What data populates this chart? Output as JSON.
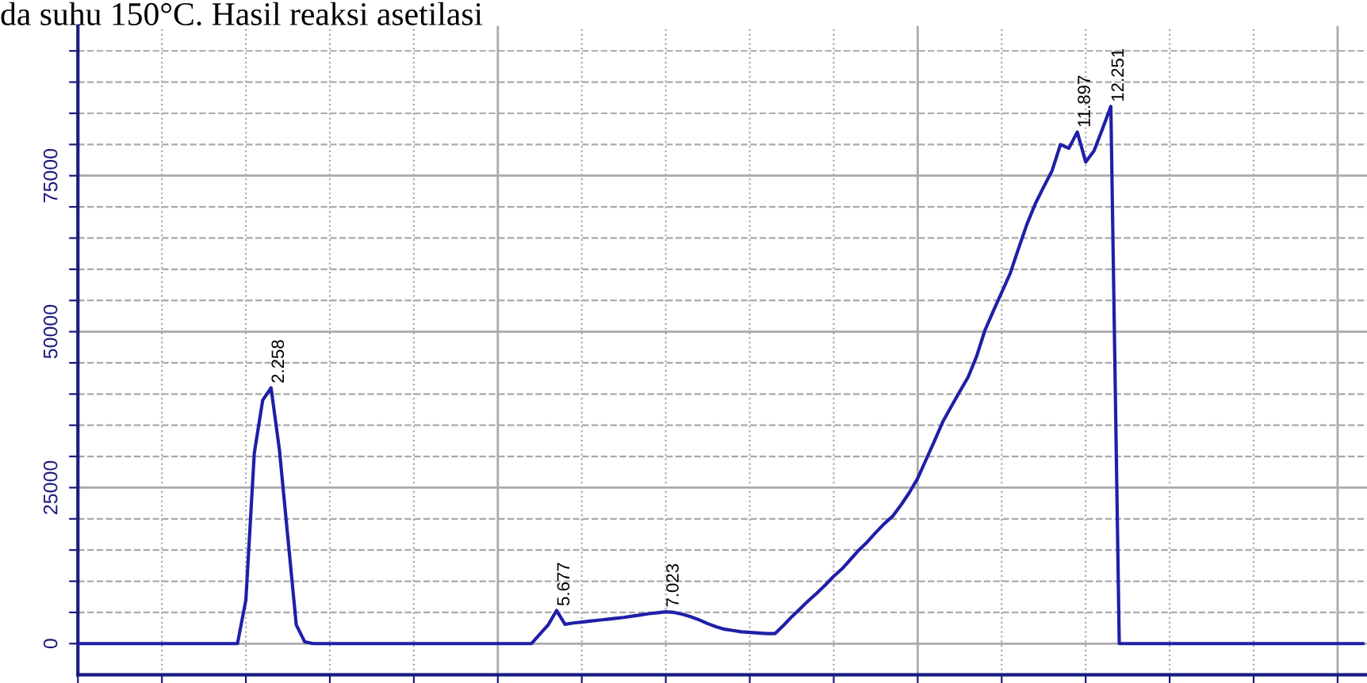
{
  "chart_data": {
    "type": "line",
    "title": "da suhu 150°C. Hasil reaksi asetilasi",
    "categories": [
      null,
      null,
      null,
      null,
      null,
      null,
      null,
      null,
      null,
      null,
      null,
      null,
      null,
      null,
      null,
      null,
      null,
      null,
      null,
      null,
      null,
      null,
      null,
      null,
      null,
      null,
      null,
      null,
      null,
      null,
      null,
      null,
      null,
      null,
      null,
      null,
      null,
      null,
      null,
      null,
      null,
      null,
      null,
      null,
      null,
      null,
      null,
      null,
      null,
      null,
      null,
      null,
      null,
      null,
      null,
      null,
      null,
      null,
      null,
      null,
      null,
      null,
      null,
      null,
      null,
      null,
      null,
      null,
      null,
      null,
      null,
      null,
      null,
      null,
      null,
      null,
      null,
      null,
      null,
      null,
      null,
      null,
      null,
      null,
      null,
      null,
      null,
      null,
      null,
      null,
      null,
      null,
      null,
      null,
      null,
      null,
      null,
      null,
      null,
      null,
      null,
      null,
      null,
      null,
      null,
      null,
      null,
      null,
      null,
      null,
      null,
      null,
      null,
      null,
      null,
      null,
      null,
      null,
      null,
      null,
      null,
      null,
      null,
      null,
      null,
      null,
      null,
      null,
      null,
      null,
      null,
      null,
      null,
      null,
      null,
      null,
      null,
      null,
      null,
      null,
      null,
      null,
      null,
      null,
      null,
      null,
      null,
      null,
      null,
      null,
      null,
      null,
      null,
      null
    ],
    "ylim": [
      -5000,
      99000
    ],
    "yticks": [
      0,
      {
        "value": 5000,
        "label": null
      },
      {
        "value": 10000,
        "label": null
      },
      {
        "value": 15000,
        "label": null
      },
      {
        "value": 20000,
        "label": null
      },
      25000,
      {
        "value": 30000,
        "label": null
      },
      {
        "value": 35000,
        "label": null
      },
      {
        "value": 40000,
        "label": null
      },
      {
        "value": 45000,
        "label": null
      },
      50000,
      {
        "value": 55000,
        "label": null
      },
      {
        "value": 60000,
        "label": null
      },
      {
        "value": 65000,
        "label": null
      },
      {
        "value": 70000,
        "label": null
      },
      75000,
      {
        "value": 80000,
        "label": null
      },
      {
        "value": 85000,
        "label": null
      },
      {
        "value": 90000,
        "label": null
      },
      {
        "value": 95000,
        "label": null
      }
    ],
    "grid": true,
    "marker": "none",
    "line_style": "solid",
    "series": [
      {
        "color": "#1f1fa8",
        "values": [
          0,
          0,
          0,
          0,
          0,
          0,
          0,
          0,
          0,
          0,
          0,
          0,
          0,
          0,
          0,
          0,
          0,
          0,
          0,
          0,
          7000,
          30500,
          39000,
          41000,
          31000,
          17000,
          3000,
          300,
          0,
          0,
          0,
          0,
          0,
          0,
          0,
          0,
          0,
          0,
          0,
          0,
          0,
          0,
          0,
          0,
          0,
          0,
          0,
          0,
          0,
          0,
          0,
          0,
          0,
          0,
          0,
          1500,
          3000,
          5300,
          3100,
          3300,
          3450,
          3600,
          3750,
          3900,
          4050,
          4200,
          4400,
          4600,
          4800,
          4950,
          5100,
          5000,
          4700,
          4300,
          3800,
          3200,
          2700,
          2300,
          2100,
          1900,
          1800,
          1700,
          1600,
          1600,
          2900,
          4300,
          5600,
          6900,
          8100,
          9400,
          10800,
          12000,
          13500,
          15000,
          16300,
          17800,
          19200,
          20400,
          22200,
          24200,
          26500,
          29500,
          32500,
          35600,
          38000,
          40400,
          42700,
          46000,
          50200,
          53300,
          56300,
          59300,
          63300,
          67200,
          70500,
          73200,
          75800,
          80000,
          79400,
          82000,
          77200,
          79000,
          82500,
          86100,
          0,
          0,
          0,
          0,
          0,
          0,
          0,
          0,
          0,
          0,
          0,
          0,
          0,
          0,
          0,
          0,
          0,
          0,
          0,
          0,
          0,
          0,
          0,
          0,
          0,
          0,
          0,
          0,
          0,
          0
        ]
      }
    ],
    "annotations": [
      {
        "text": "2.258",
        "y": 41000
      },
      {
        "text": "5.677",
        "y": 5300
      },
      {
        "text": "7.023",
        "y": 5100
      },
      {
        "text": "11.897",
        "y": 82000
      },
      {
        "text": "12.251",
        "y": 86100
      }
    ]
  }
}
